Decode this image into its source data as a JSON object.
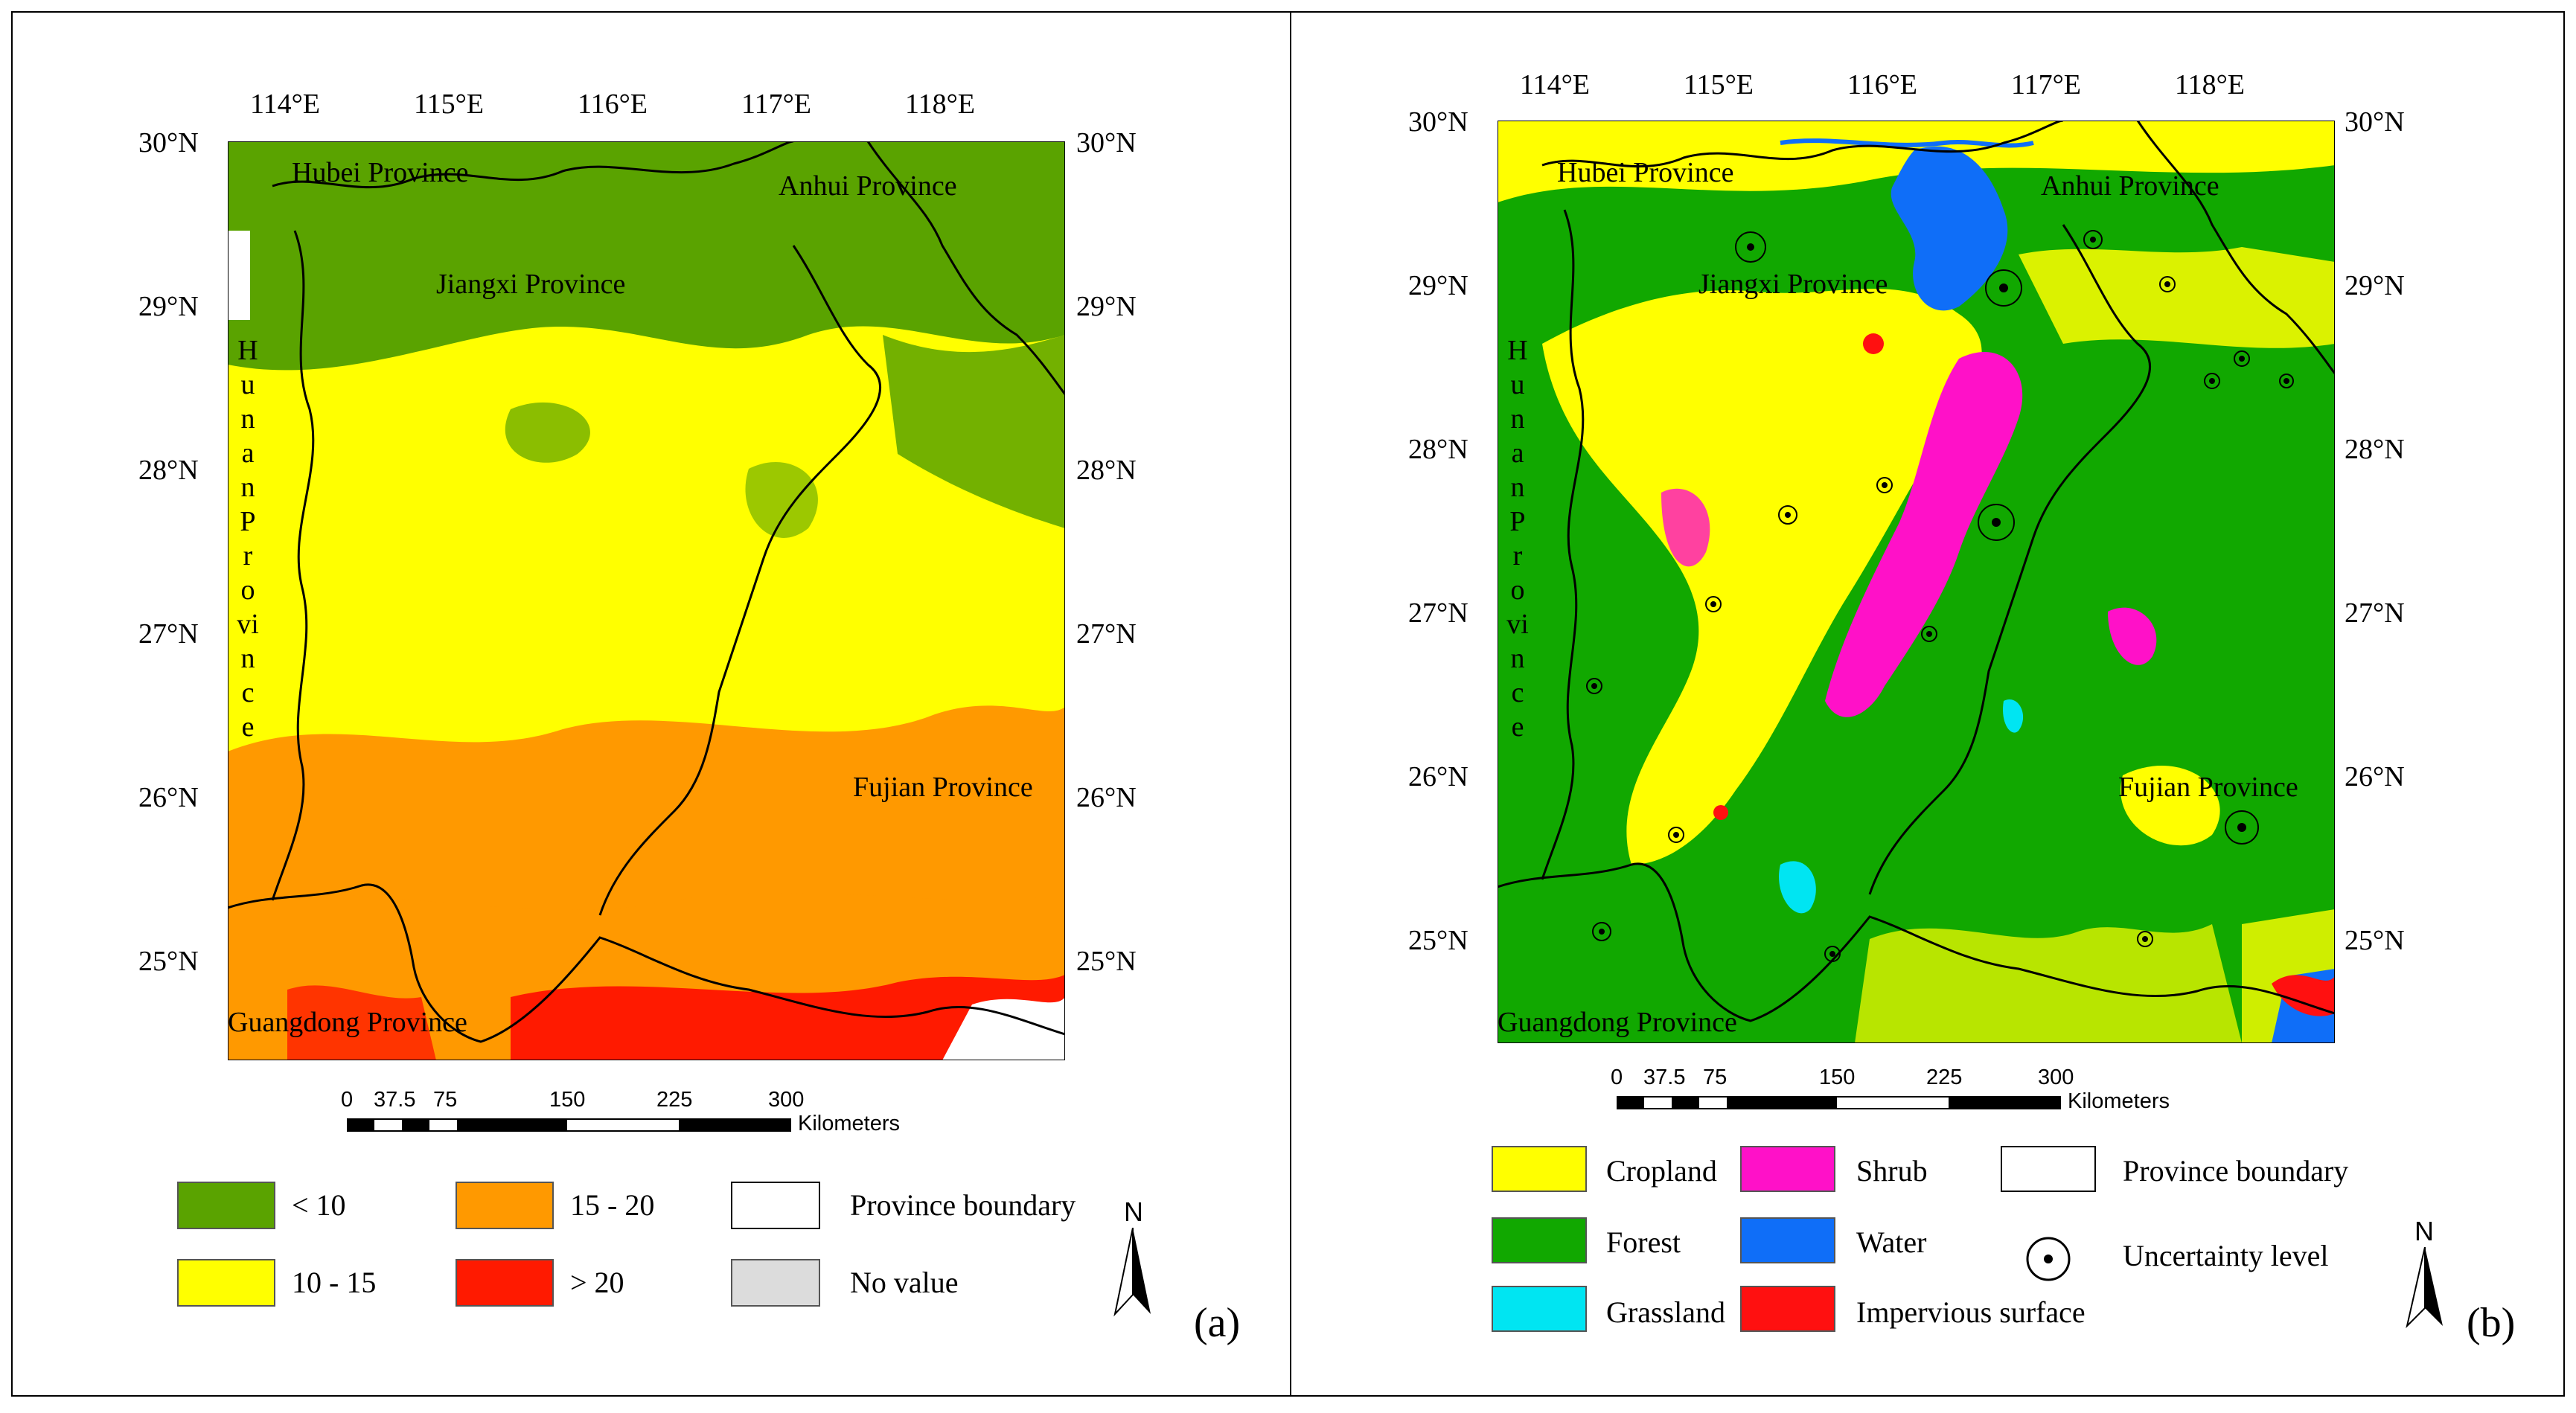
{
  "panel_a": {
    "label": "(a)",
    "lon_ticks": [
      "114°E",
      "115°E",
      "116°E",
      "117°E",
      "118°E"
    ],
    "lat_ticks": [
      "30°N",
      "29°N",
      "28°N",
      "27°N",
      "26°N",
      "25°N"
    ],
    "provinces": {
      "hubei": "Hubei Province",
      "anhui": "Anhui Province",
      "jiangxi": "Jiangxi Province",
      "hunan": "Hunan Province",
      "fujian": "Fujian Province",
      "guangdong": "Guangdong Province"
    },
    "scale": {
      "ticks": [
        "0",
        "37.5",
        "75",
        "150",
        "225",
        "300"
      ],
      "unit": "Kilometers"
    },
    "legend": [
      {
        "label": "< 10",
        "color": "#5aa300"
      },
      {
        "label": "10 - 15",
        "color": "#ffff00"
      },
      {
        "label": "15 - 20",
        "color": "#ff9900"
      },
      {
        "label": "> 20",
        "color": "#ff1a00"
      },
      {
        "label": "Province boundary",
        "color": "#ffffff"
      },
      {
        "label": "No value",
        "color": "#dcdcdc"
      }
    ],
    "north": "N"
  },
  "panel_b": {
    "label": "(b)",
    "lon_ticks": [
      "114°E",
      "115°E",
      "116°E",
      "117°E",
      "118°E"
    ],
    "lat_ticks": [
      "30°N",
      "29°N",
      "28°N",
      "27°N",
      "26°N",
      "25°N"
    ],
    "provinces": {
      "hubei": "Hubei Province",
      "anhui": "Anhui Province",
      "jiangxi": "Jiangxi Province",
      "hunan": "Hunan Province",
      "fujian": "Fujian Province",
      "guangdong": "Guangdong Province"
    },
    "scale": {
      "ticks": [
        "0",
        "37.5",
        "75",
        "150",
        "225",
        "300"
      ],
      "unit": "Kilometers"
    },
    "legend": [
      {
        "label": "Cropland",
        "color": "#ffff00"
      },
      {
        "label": "Forest",
        "color": "#11a800"
      },
      {
        "label": "Grassland",
        "color": "#00e5f2"
      },
      {
        "label": "Shrub",
        "color": "#ff11c8"
      },
      {
        "label": "Water",
        "color": "#0f6ef8"
      },
      {
        "label": "Impervious surface",
        "color": "#ff1010"
      },
      {
        "label": "Province boundary",
        "color": "#ffffff"
      },
      {
        "label": "Uncertainty level",
        "color": "#000000"
      }
    ],
    "north": "N"
  }
}
